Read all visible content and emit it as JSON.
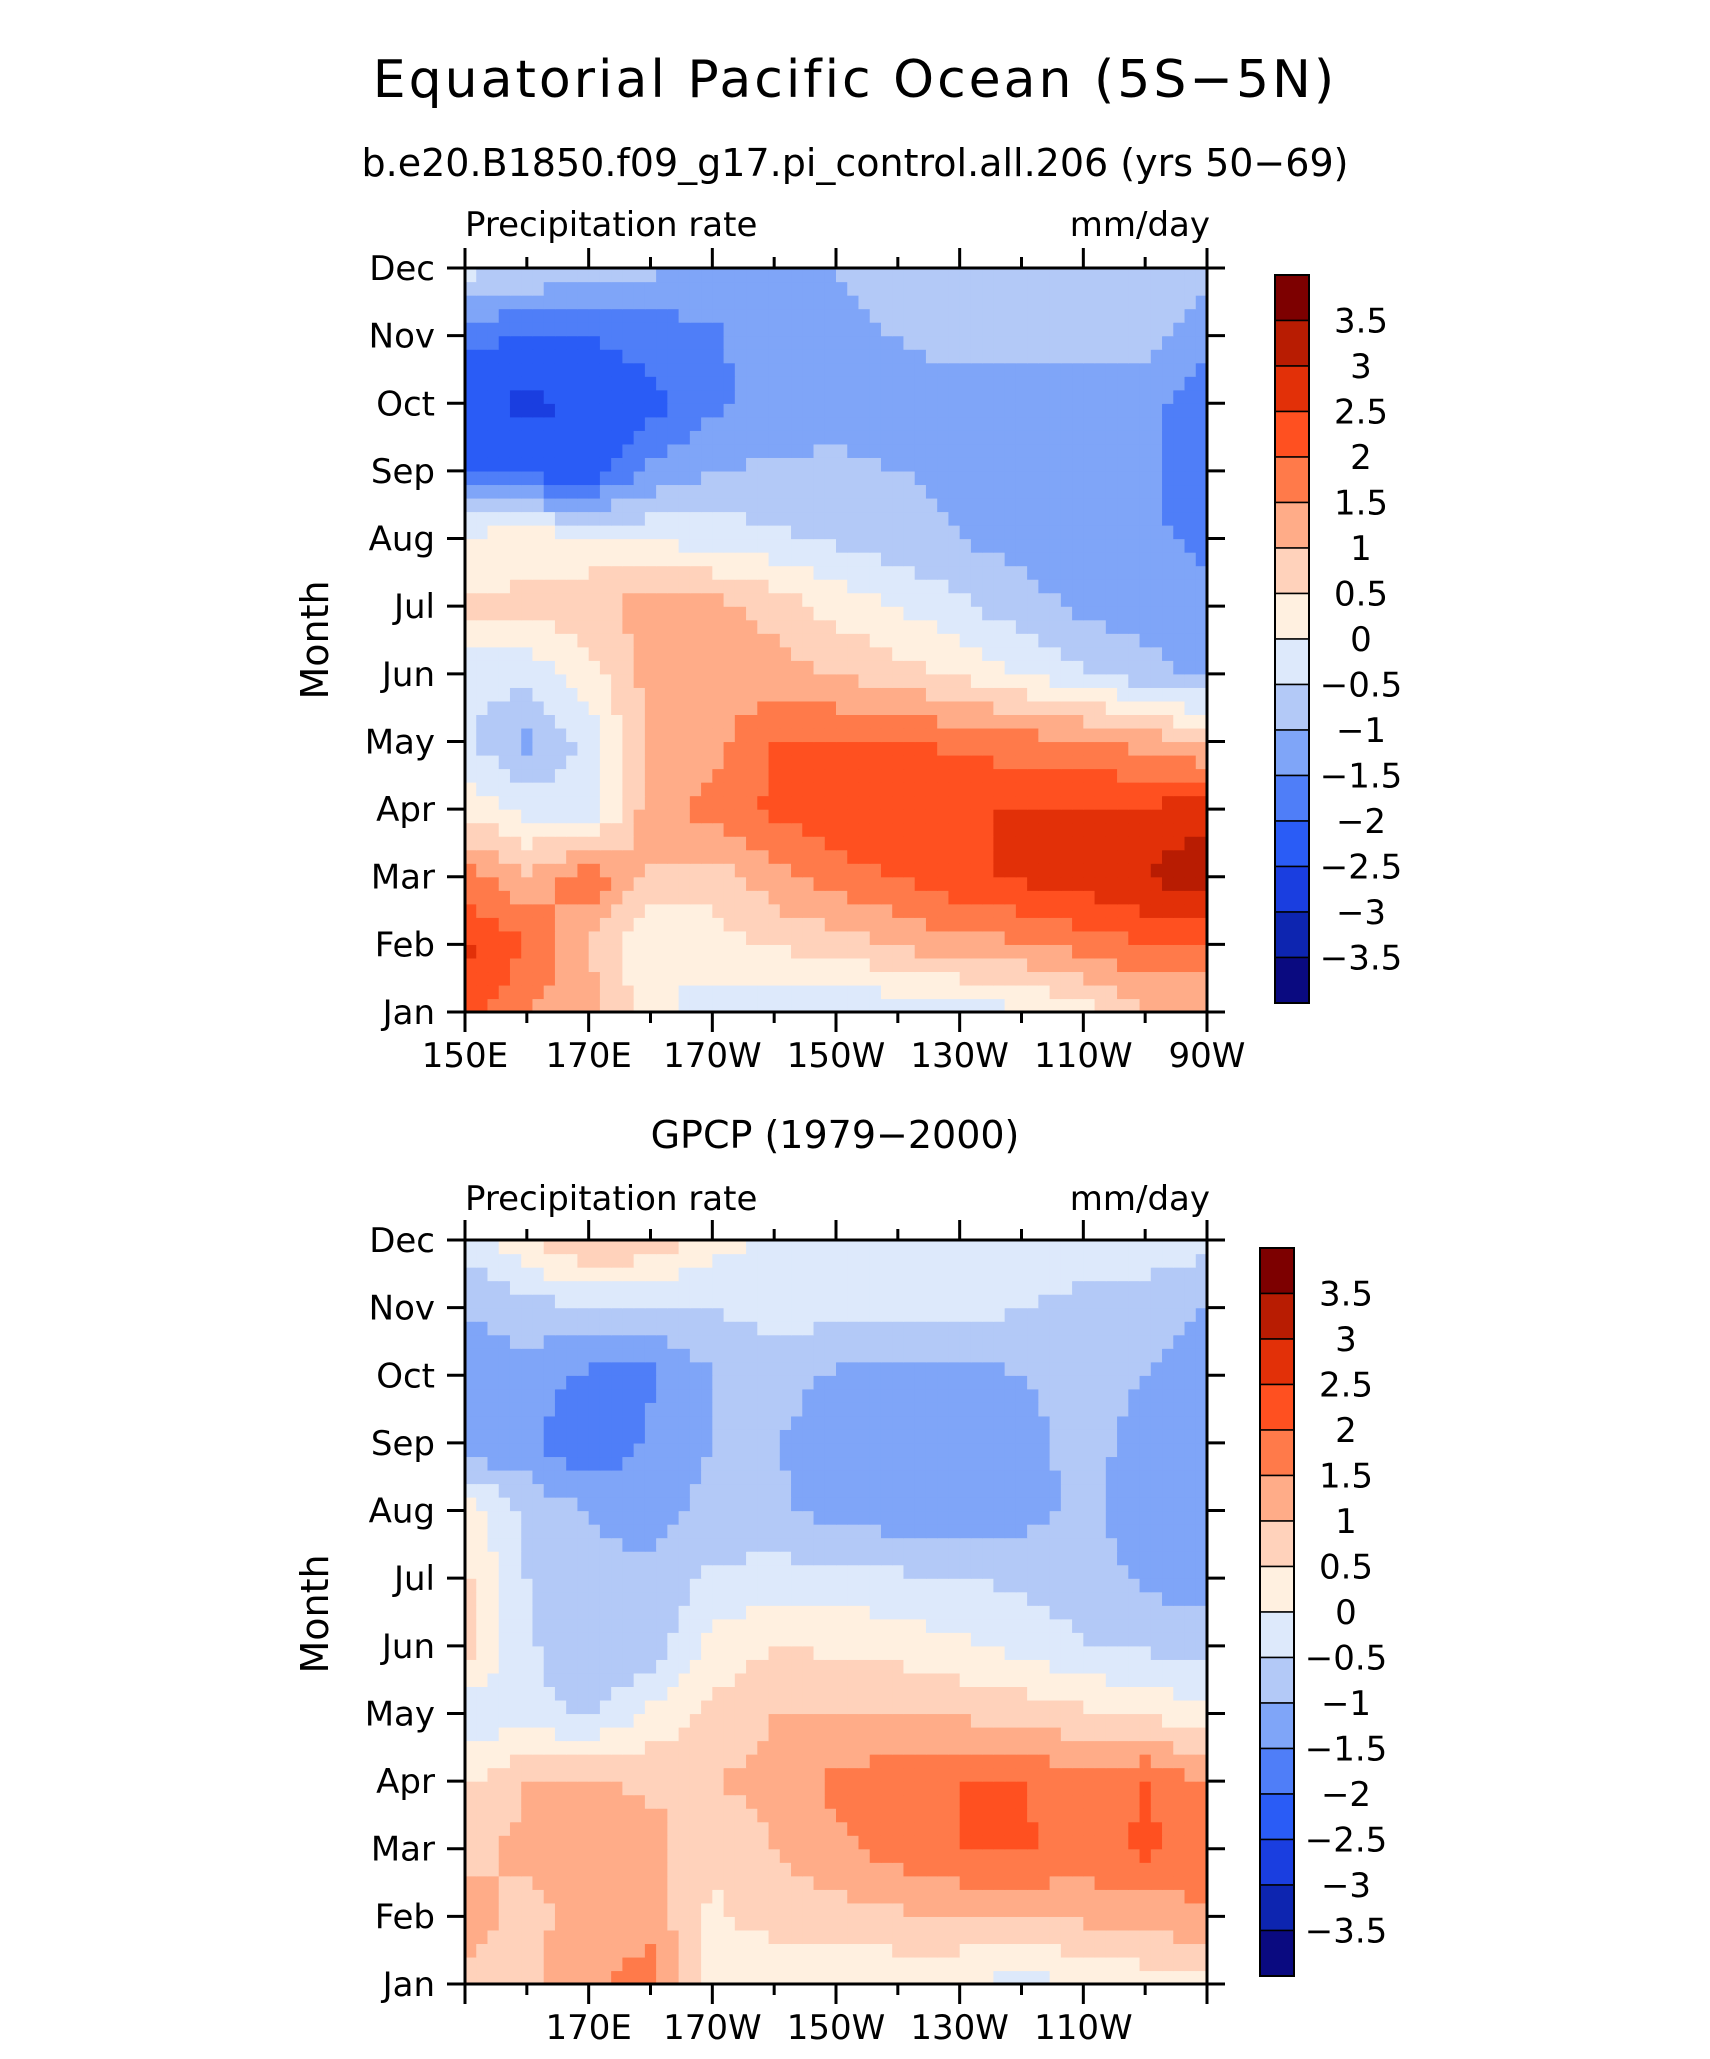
{
  "figure": {
    "title": "Equatorial Pacific Ocean (5S−5N)"
  },
  "colorbar": {
    "levels": [
      -3.5,
      -3,
      -2.5,
      -2,
      -1.5,
      -1,
      -0.5,
      0,
      0.5,
      1,
      1.5,
      2,
      2.5,
      3,
      3.5
    ],
    "labels": [
      "3.5",
      "3",
      "2.5",
      "2",
      "1.5",
      "1",
      "0.5",
      "0",
      "−0.5",
      "−1",
      "−1.5",
      "−2",
      "−2.5",
      "−3",
      "−3.5"
    ],
    "colors": [
      "#0a0a80",
      "#0d25b0",
      "#1a3ee0",
      "#2a5cf6",
      "#4f7ef8",
      "#7fa5f8",
      "#b3c9f7",
      "#dde9fb",
      "#fff0e0",
      "#ffd2bb",
      "#ffac88",
      "#ff7a4a",
      "#ff5020",
      "#e23008",
      "#b81c02",
      "#7d0000"
    ]
  },
  "chart_data": [
    {
      "type": "heatmap",
      "subtitle": "b.e20.B1850.f09_g17.pi_control.all.206 (yrs 50−69)",
      "left_string": "Precipitation rate",
      "right_string": "mm/day",
      "ylabel": "Month",
      "x": [
        "150E",
        "160E",
        "170E",
        "180",
        "170W",
        "160W",
        "150W",
        "140W",
        "130W",
        "120W",
        "110W",
        "100W",
        "90W"
      ],
      "xtick_labels": [
        "150E",
        "170E",
        "170W",
        "150W",
        "130W",
        "110W",
        "90W"
      ],
      "xtick_labels_hidden": [],
      "y": [
        "Jan",
        "Feb",
        "Mar",
        "Apr",
        "May",
        "Jun",
        "Jul",
        "Aug",
        "Sep",
        "Oct",
        "Nov",
        "Dec"
      ],
      "values": [
        [
          2.3,
          1.5,
          1.2,
          0.2,
          -0.3,
          -0.6,
          -0.6,
          -0.4,
          -0.3,
          -0.1,
          0.3,
          0.9,
          1.0
        ],
        [
          2.6,
          2.0,
          1.0,
          0.0,
          0.3,
          0.6,
          0.7,
          1.1,
          1.3,
          1.4,
          1.7,
          2.0,
          2.0
        ],
        [
          1.7,
          1.1,
          1.9,
          0.9,
          0.7,
          1.3,
          1.8,
          2.0,
          2.4,
          2.6,
          2.8,
          3.0,
          3.4
        ],
        [
          0.4,
          -0.2,
          -0.4,
          1.3,
          1.7,
          2.1,
          2.4,
          2.5,
          2.5,
          2.5,
          2.5,
          2.6,
          2.8
        ],
        [
          -0.4,
          -1.1,
          -0.3,
          1.1,
          1.3,
          2.0,
          2.0,
          2.0,
          1.9,
          1.7,
          1.6,
          1.3,
          0.9
        ],
        [
          -0.3,
          -0.3,
          0.3,
          1.2,
          1.3,
          1.2,
          1.0,
          0.7,
          0.4,
          0.0,
          -0.4,
          -0.8,
          -1.1
        ],
        [
          0.6,
          0.6,
          0.8,
          1.3,
          1.2,
          0.8,
          0.3,
          0.0,
          -0.4,
          -0.8,
          -1.1,
          -1.3,
          -1.4
        ],
        [
          0.2,
          0.3,
          0.2,
          -0.1,
          -0.2,
          -0.4,
          -0.6,
          -0.8,
          -1.0,
          -1.2,
          -1.3,
          -1.4,
          -1.6
        ],
        [
          -2.1,
          -2.2,
          -2.4,
          -1.4,
          -1.0,
          -0.9,
          -0.9,
          -1.0,
          -1.1,
          -1.2,
          -1.3,
          -1.4,
          -1.9
        ],
        [
          -2.4,
          -2.6,
          -2.4,
          -2.2,
          -1.6,
          -1.3,
          -1.2,
          -1.2,
          -1.2,
          -1.3,
          -1.3,
          -1.3,
          -1.9
        ],
        [
          -1.9,
          -2.0,
          -2.0,
          -1.8,
          -1.6,
          -1.2,
          -1.1,
          -1.0,
          -0.8,
          -0.8,
          -0.8,
          -0.8,
          -1.3
        ],
        [
          -0.3,
          -0.5,
          -0.7,
          -0.9,
          -1.1,
          -1.1,
          -1.0,
          -0.8,
          -0.6,
          -0.5,
          -0.5,
          -0.6,
          -0.9
        ]
      ]
    },
    {
      "type": "heatmap",
      "subtitle": "GPCP (1979−2000)",
      "left_string": "Precipitation rate",
      "right_string": "mm/day",
      "ylabel": "Month",
      "x": [
        "150E",
        "160E",
        "170E",
        "180",
        "170W",
        "160W",
        "150W",
        "140W",
        "130W",
        "120W",
        "110W",
        "100W",
        "90W"
      ],
      "xtick_labels": [
        "150E",
        "170E",
        "170W",
        "150W",
        "130W",
        "110W",
        "90W"
      ],
      "xtick_labels_hidden": [
        "150E",
        "90W"
      ],
      "y": [
        "Jan",
        "Feb",
        "Mar",
        "Apr",
        "May",
        "Jun",
        "Jul",
        "Aug",
        "Sep",
        "Oct",
        "Nov",
        "Dec"
      ],
      "values": [
        [
          0.9,
          0.9,
          1.4,
          1.7,
          0.3,
          0.1,
          0.1,
          0.1,
          0.0,
          -0.2,
          0.0,
          0.2,
          0.4
        ],
        [
          1.2,
          0.8,
          1.3,
          1.3,
          0.4,
          0.7,
          0.8,
          0.9,
          1.0,
          1.0,
          1.1,
          1.2,
          1.4
        ],
        [
          0.9,
          1.1,
          1.2,
          1.2,
          0.6,
          1.0,
          1.4,
          1.7,
          2.0,
          2.1,
          1.8,
          2.1,
          1.8
        ],
        [
          0.4,
          1.0,
          1.1,
          0.9,
          1.0,
          1.2,
          1.6,
          1.8,
          2.0,
          2.0,
          1.7,
          2.0,
          1.5
        ],
        [
          -0.3,
          -0.3,
          -0.6,
          0.1,
          0.6,
          1.0,
          1.0,
          1.0,
          0.9,
          0.8,
          0.6,
          0.4,
          0.1
        ],
        [
          0.7,
          -0.4,
          -1.0,
          -0.8,
          0.2,
          0.5,
          0.4,
          0.3,
          0.1,
          -0.2,
          -0.5,
          -0.6,
          -0.6
        ],
        [
          0.6,
          -0.5,
          -0.9,
          -0.9,
          -0.4,
          -0.3,
          -0.3,
          -0.4,
          -0.5,
          -0.6,
          -0.7,
          -1.1,
          -1.3
        ],
        [
          0.3,
          -0.6,
          -1.0,
          -1.2,
          -0.8,
          -0.9,
          -1.2,
          -1.3,
          -1.3,
          -1.2,
          -0.9,
          -1.3,
          -1.2
        ],
        [
          -1.4,
          -1.4,
          -2.0,
          -1.4,
          -1.0,
          -1.0,
          -1.2,
          -1.3,
          -1.3,
          -1.2,
          -0.8,
          -1.2,
          -1.3
        ],
        [
          -1.2,
          -1.2,
          -1.6,
          -1.6,
          -1.0,
          -0.8,
          -1.1,
          -1.2,
          -1.2,
          -1.0,
          -0.8,
          -1.0,
          -1.4
        ],
        [
          -1.0,
          -0.7,
          -0.6,
          -0.6,
          -0.5,
          -0.3,
          -0.3,
          -0.2,
          -0.3,
          -0.5,
          -0.6,
          -0.7,
          -1.0
        ],
        [
          -0.3,
          0.4,
          1.2,
          0.9,
          0.2,
          -0.1,
          -0.3,
          -0.3,
          -0.3,
          -0.3,
          -0.3,
          -0.3,
          -0.3
        ]
      ]
    }
  ]
}
